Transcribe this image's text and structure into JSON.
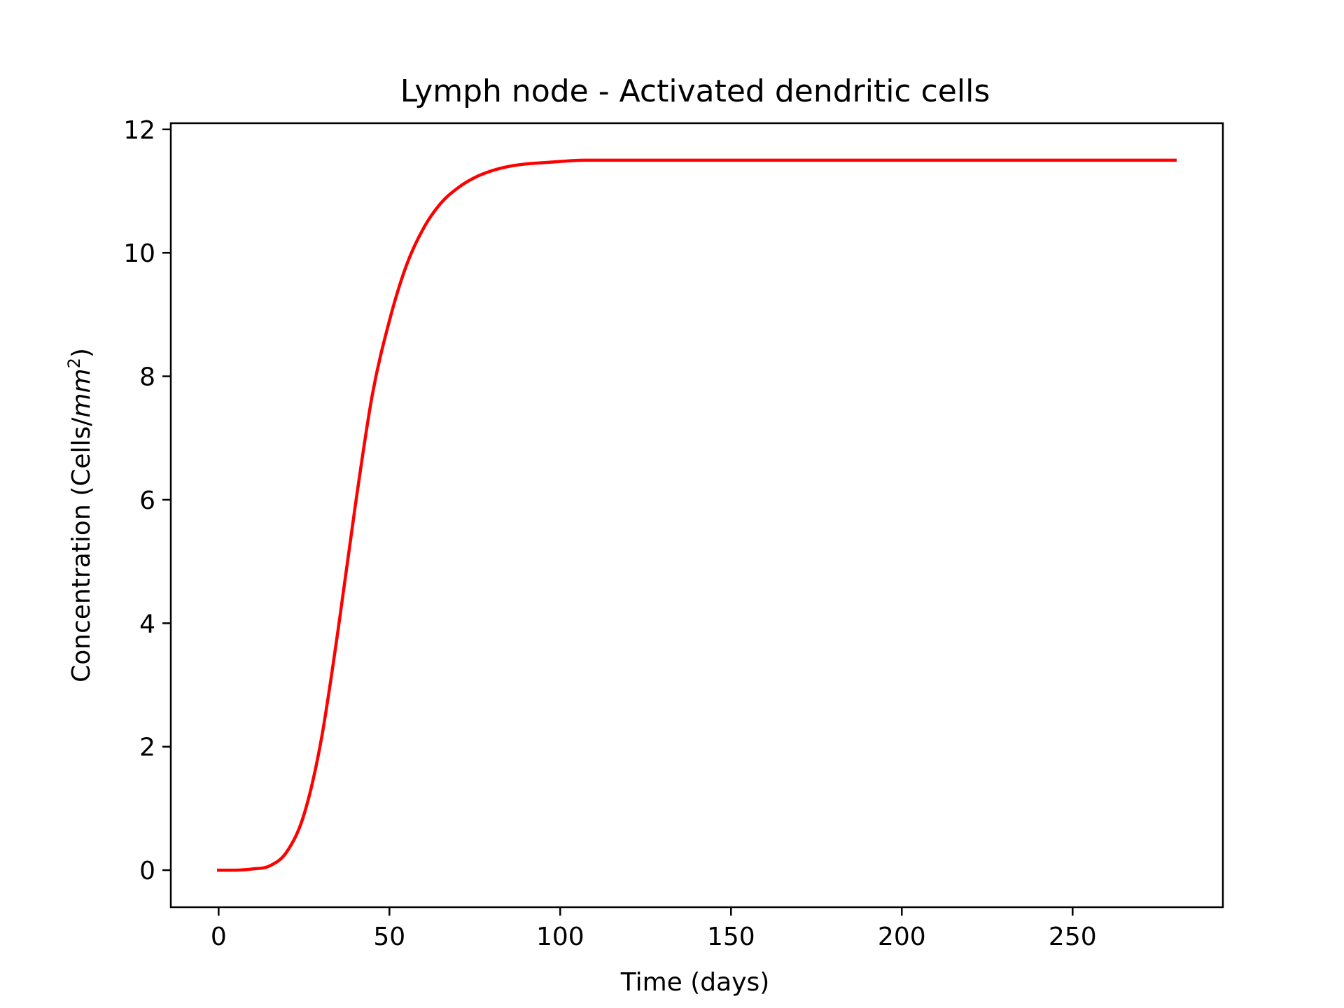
{
  "chart_data": {
    "type": "line",
    "title": "Lymph node - Activated dendritic cells",
    "xlabel": "Time (days)",
    "ylabel_text": "Concentration (Cells/",
    "ylabel_math": "mm",
    "ylabel_sup": "2",
    "ylabel_close": ")",
    "xlim": [
      -14,
      294
    ],
    "ylim": [
      -0.6,
      12.1
    ],
    "xticks": [
      0,
      50,
      100,
      150,
      200,
      250
    ],
    "yticks": [
      0,
      2,
      4,
      6,
      8,
      10,
      12
    ],
    "grid": false,
    "colors": {
      "line": "#ff0000",
      "axes": "#000000",
      "background": "#ffffff"
    },
    "series": [
      {
        "x": [
          0,
          5,
          10,
          15,
          20,
          25,
          30,
          35,
          40,
          45,
          50,
          55,
          60,
          65,
          70,
          75,
          80,
          85,
          90,
          95,
          100,
          107,
          120,
          150,
          200,
          250,
          280
        ],
        "y": [
          0.0,
          0.0,
          0.02,
          0.07,
          0.3,
          0.9,
          2.1,
          3.9,
          5.9,
          7.7,
          8.9,
          9.8,
          10.4,
          10.8,
          11.05,
          11.22,
          11.33,
          11.4,
          11.44,
          11.46,
          11.48,
          11.5,
          11.5,
          11.5,
          11.5,
          11.5,
          11.5
        ]
      }
    ]
  }
}
